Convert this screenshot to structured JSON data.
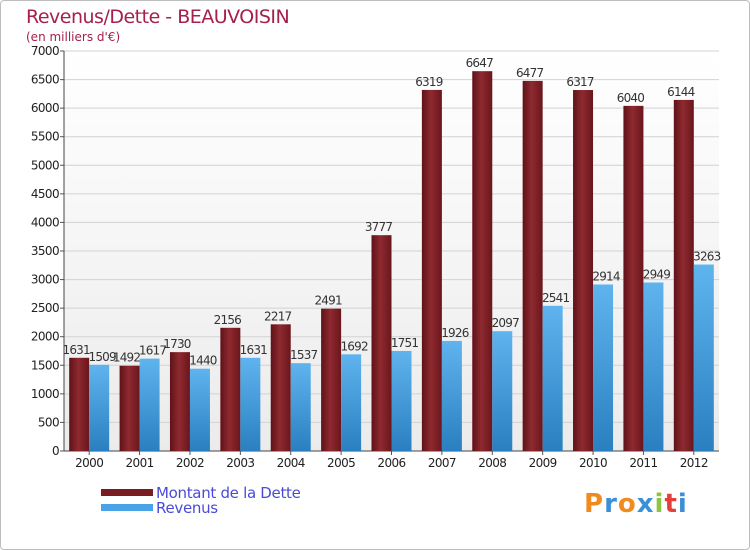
{
  "title": "Revenus/Dette - BEAUVOISIN",
  "subtitle": "(en milliers d'€)",
  "legend": [
    {
      "label": "Montant de la Dette",
      "color": "#7a1c22"
    },
    {
      "label": "Revenus",
      "color": "#4aa3e6"
    }
  ],
  "brand": {
    "letters": [
      "P",
      "r",
      "o",
      "x",
      "i",
      "t",
      "i"
    ],
    "colors": [
      "#f08c1e",
      "#3a8fd6",
      "#f08c1e",
      "#3a8fd6",
      "#8cc63e",
      "#e2413b",
      "#3a8fd6"
    ]
  },
  "chart_data": {
    "type": "bar",
    "title": "Revenus/Dette - BEAUVOISIN",
    "subtitle": "(en milliers d'€)",
    "categories": [
      "2000",
      "2001",
      "2002",
      "2003",
      "2004",
      "2005",
      "2006",
      "2007",
      "2008",
      "2009",
      "2010",
      "2011",
      "2012"
    ],
    "series": [
      {
        "name": "Montant de la Dette",
        "color": "#7a1c22",
        "values": [
          1631,
          1492,
          1730,
          2156,
          2217,
          2491,
          3777,
          6319,
          6647,
          6477,
          6317,
          6040,
          6144
        ]
      },
      {
        "name": "Revenus",
        "color": "#4aa3e6",
        "values": [
          1509,
          1617,
          1440,
          1631,
          1537,
          1692,
          1751,
          1926,
          2097,
          2541,
          2914,
          2949,
          3263
        ]
      }
    ],
    "ylim": [
      0,
      7000
    ],
    "yticks": [
      0,
      500,
      1000,
      1500,
      2000,
      2500,
      3000,
      3500,
      4000,
      4500,
      5000,
      5500,
      6000,
      6500,
      7000
    ],
    "grid": true,
    "legend_position": "bottom-left"
  }
}
